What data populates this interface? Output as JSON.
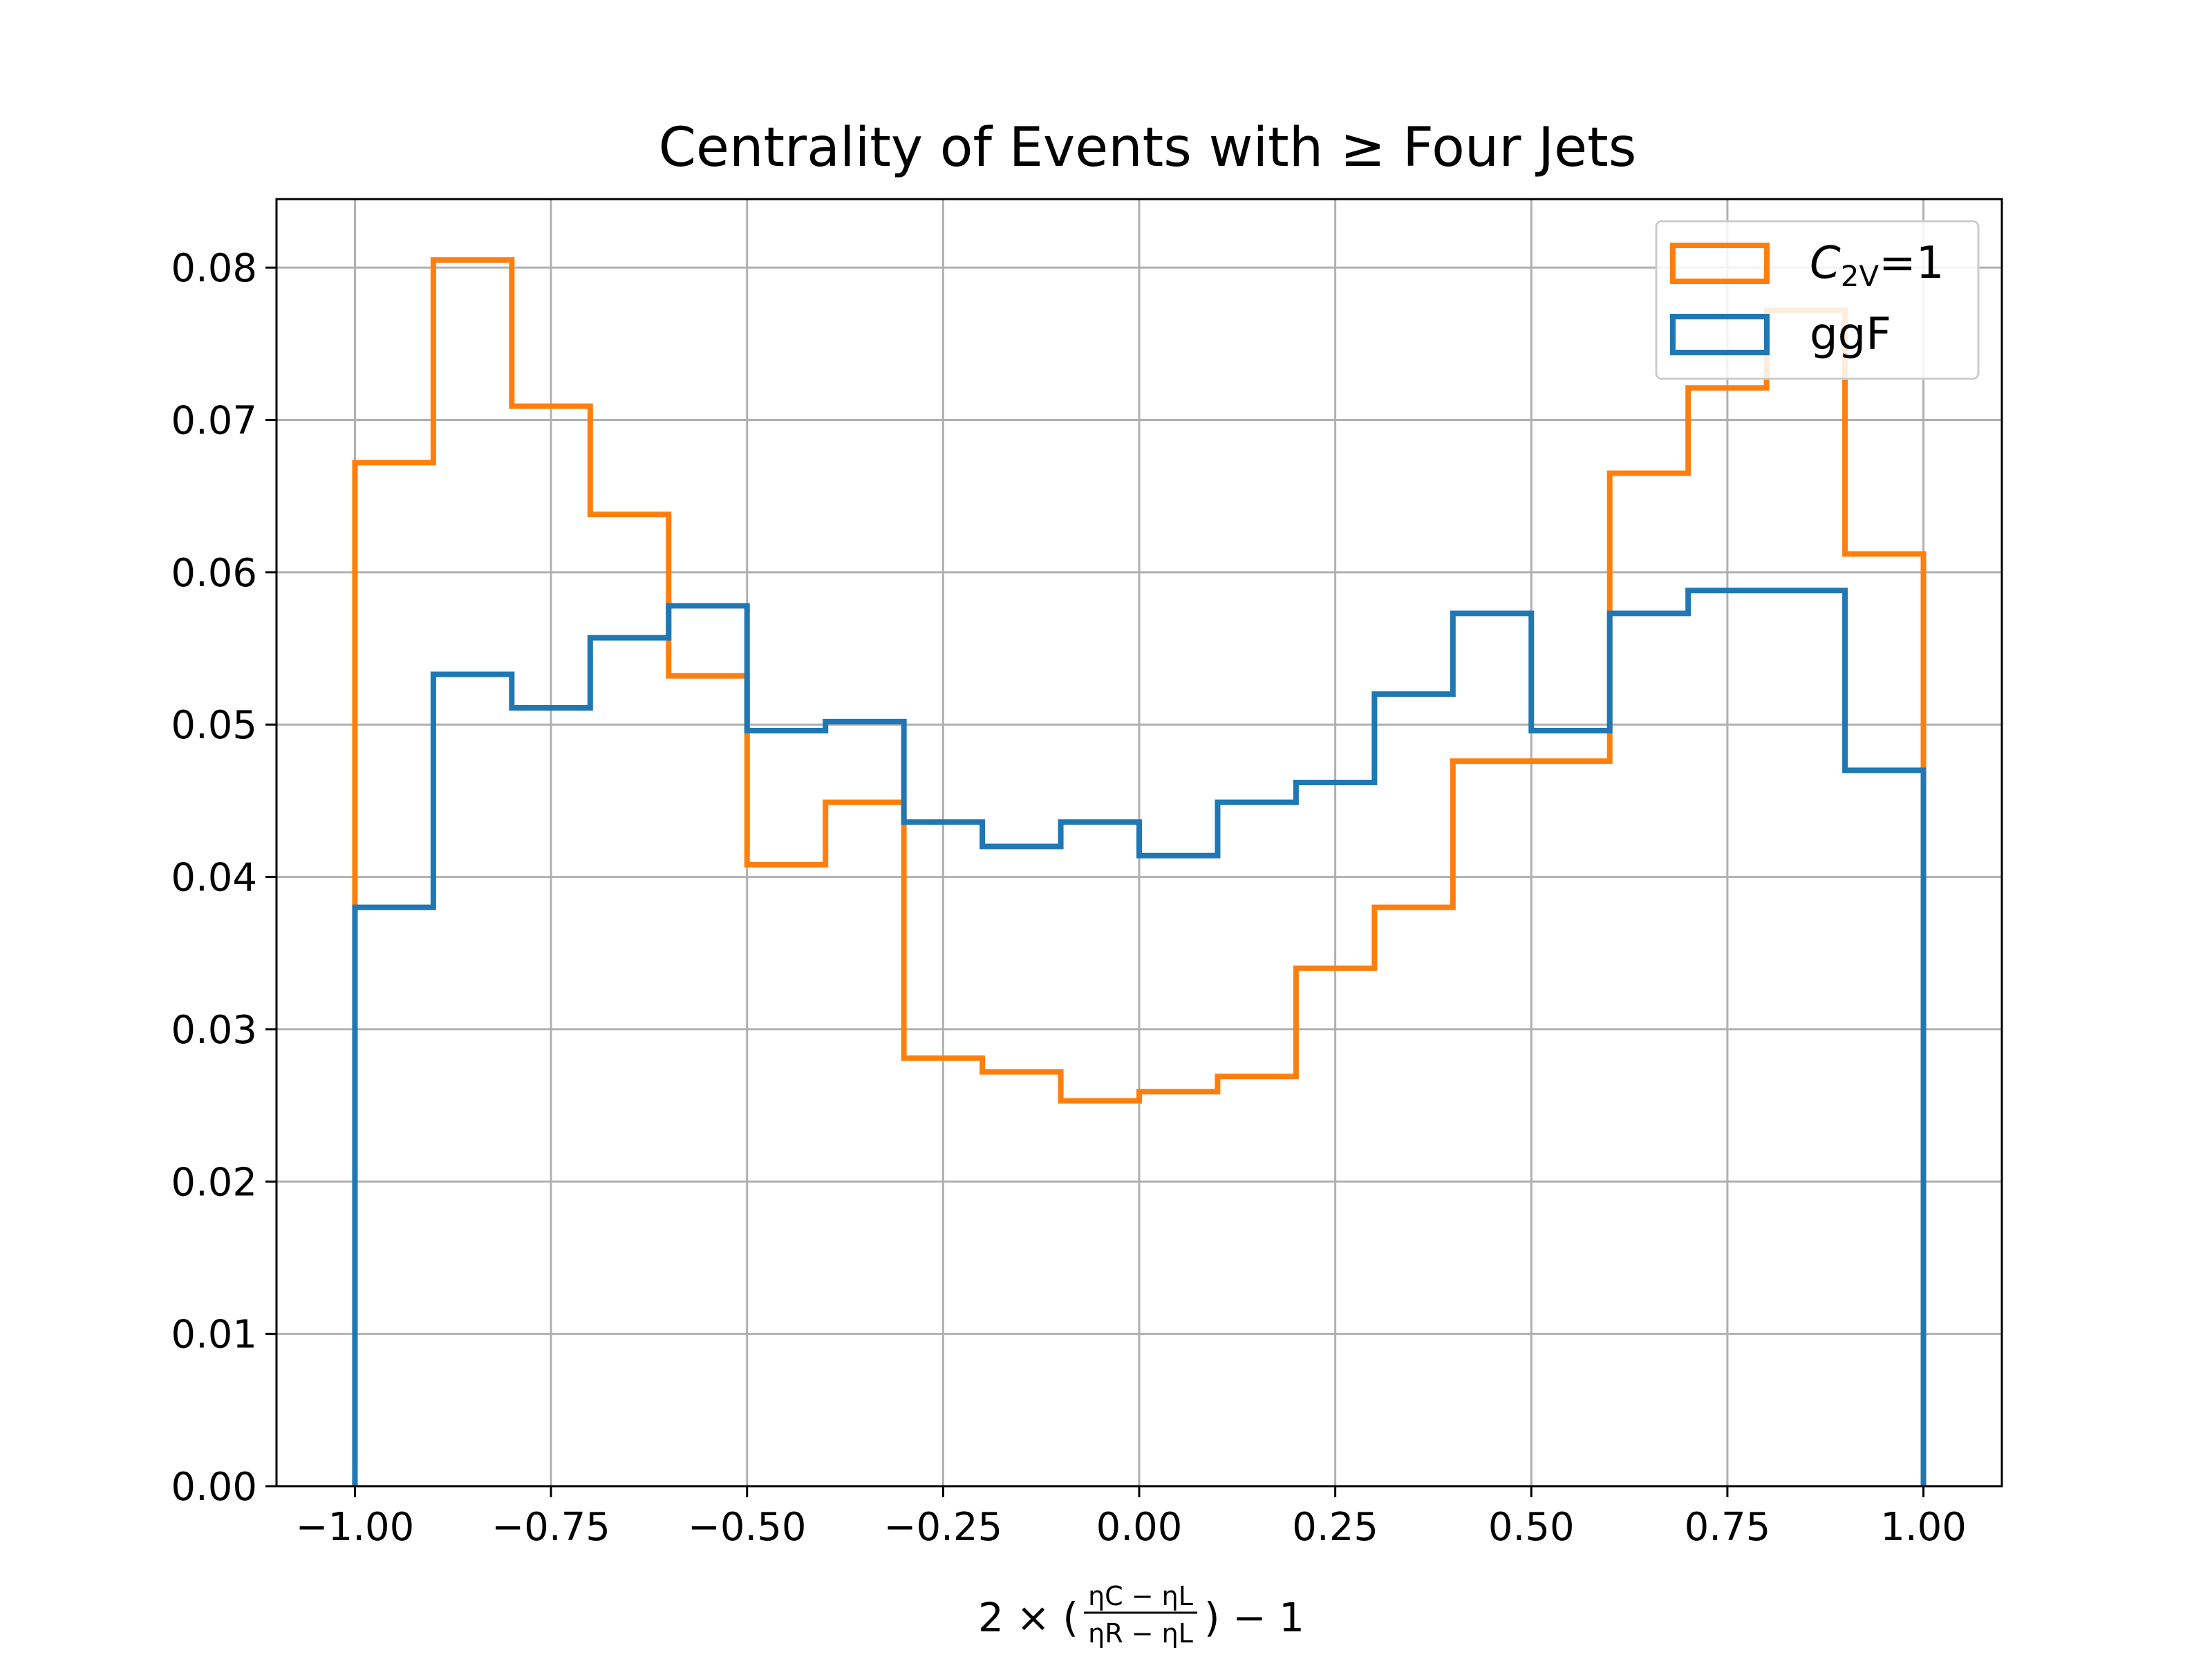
{
  "chart_data": {
    "type": "step-histogram",
    "title": "Centrality of Events with  ≥  Four Jets",
    "xlabel": {
      "prefix": "2 × (",
      "numerator": "ηC − ηL",
      "denominator": "ηR − ηL",
      "suffix": ") − 1"
    },
    "ylabel": "",
    "xlim": [
      -1.1,
      1.1
    ],
    "ylim": [
      0,
      0.0845
    ],
    "xticks": [
      -1.0,
      -0.75,
      -0.5,
      -0.25,
      0.0,
      0.25,
      0.5,
      0.75,
      1.0
    ],
    "xtick_labels": [
      "−1.00",
      "−0.75",
      "−0.50",
      "−0.25",
      "0.00",
      "0.25",
      "0.50",
      "0.75",
      "1.00"
    ],
    "yticks": [
      0.0,
      0.01,
      0.02,
      0.03,
      0.04,
      0.05,
      0.06,
      0.07,
      0.08
    ],
    "ytick_labels": [
      "0.00",
      "0.01",
      "0.02",
      "0.03",
      "0.04",
      "0.05",
      "0.06",
      "0.07",
      "0.08"
    ],
    "grid": true,
    "legend_position": "top-right",
    "bin_edges": [
      -1.0,
      -0.9,
      -0.8,
      -0.7,
      -0.6,
      -0.5,
      -0.4,
      -0.3,
      -0.2,
      -0.1,
      0.0,
      0.1,
      0.2,
      0.3,
      0.4,
      0.5,
      0.6,
      0.7,
      0.8,
      0.9,
      1.0
    ],
    "series": [
      {
        "name": "C",
        "name_subscript": "2V",
        "name_suffix": "=1",
        "color": "#ff7f0e",
        "values": [
          0.0672,
          0.0805,
          0.0709,
          0.0638,
          0.0532,
          0.0408,
          0.0449,
          0.0281,
          0.0272,
          0.0253,
          0.0259,
          0.0269,
          0.034,
          0.038,
          0.0476,
          0.0476,
          0.0665,
          0.0721,
          0.0772,
          0.0612
        ]
      },
      {
        "name": "ggF",
        "color": "#1f77b4",
        "values": [
          0.038,
          0.0533,
          0.0511,
          0.0557,
          0.0578,
          0.0496,
          0.0502,
          0.0436,
          0.042,
          0.0436,
          0.0414,
          0.0449,
          0.0462,
          0.052,
          0.0573,
          0.0496,
          0.0573,
          0.0588,
          0.0588,
          0.047
        ]
      }
    ]
  }
}
